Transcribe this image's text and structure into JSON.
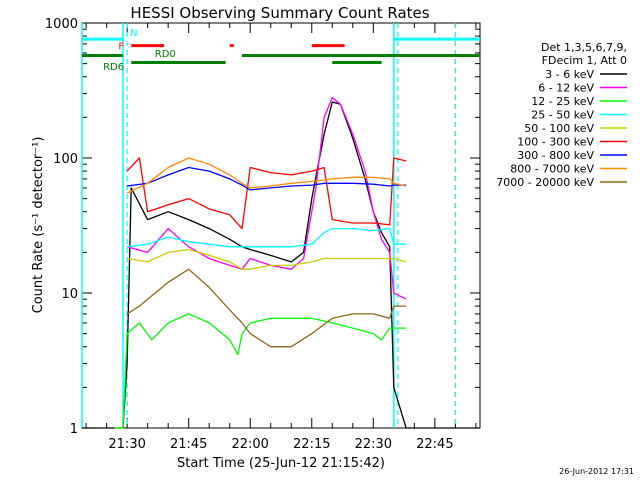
{
  "chart_data": {
    "type": "line",
    "title": "HESSI Observing Summary Count Rates",
    "xlabel": "Start Time (25-Jun-12 21:15:42)",
    "ylabel": "Count Rate (s⁻¹ detector⁻¹)",
    "yscale": "log",
    "ylim": [
      1,
      1000
    ],
    "xlim": [
      "21:19",
      "22:56"
    ],
    "x_ticks": [
      "21:30",
      "21:45",
      "22:00",
      "22:15",
      "22:30",
      "22:45"
    ],
    "y_ticks": [
      "1",
      "10",
      "100",
      "1000"
    ],
    "timestamp": "26-Jun-2012 17:31",
    "legend": {
      "placement": "right",
      "header": [
        "Det 1,3,5,6,7,9,",
        "FDecim 1, Att 0"
      ]
    },
    "series": [
      {
        "name": "3 - 6 keV",
        "color": "#000000",
        "x": [
          "21:19",
          "21:27",
          "21:29",
          "21:30",
          "21:31",
          "21:35",
          "21:40",
          "21:45",
          "21:50",
          "21:55",
          "21:58",
          "22:00",
          "22:05",
          "22:10",
          "22:13",
          "22:15",
          "22:18",
          "22:20",
          "22:22",
          "22:25",
          "22:28",
          "22:30",
          "22:32",
          "22:34",
          "22:35",
          "22:38",
          "22:40",
          "22:42",
          "22:44",
          "22:46",
          "22:48",
          "22:56"
        ],
        "y": [
          1,
          1,
          1,
          3,
          60,
          35,
          40,
          35,
          30,
          25,
          22,
          21,
          19,
          17,
          20,
          50,
          150,
          260,
          250,
          140,
          70,
          40,
          28,
          22,
          2,
          1,
          1,
          1,
          1,
          1,
          1,
          1
        ]
      },
      {
        "name": "6 - 12 keV",
        "color": "#ff00ff",
        "x": [
          "21:30",
          "21:35",
          "21:40",
          "21:45",
          "21:50",
          "21:55",
          "21:58",
          "22:00",
          "22:05",
          "22:10",
          "22:13",
          "22:16",
          "22:18",
          "22:20",
          "22:22",
          "22:25",
          "22:28",
          "22:30",
          "22:32",
          "22:34",
          "22:35",
          "22:38"
        ],
        "y": [
          22,
          20,
          30,
          22,
          18,
          16,
          15,
          18,
          16,
          15,
          18,
          60,
          200,
          280,
          250,
          150,
          80,
          40,
          25,
          20,
          10,
          9
        ]
      },
      {
        "name": "12 - 25 keV",
        "color": "#00ff00",
        "x": [
          "21:27",
          "21:29",
          "21:30",
          "21:33",
          "21:36",
          "21:40",
          "21:45",
          "21:50",
          "21:55",
          "21:57",
          "21:58",
          "22:00",
          "22:05",
          "22:10",
          "22:15",
          "22:20",
          "22:25",
          "22:30",
          "22:32",
          "22:34",
          "22:35",
          "22:38"
        ],
        "y": [
          1,
          1,
          5,
          6,
          4.5,
          6,
          7,
          6,
          4.5,
          3.5,
          5,
          6,
          6.5,
          6.5,
          6.5,
          6,
          5.5,
          5,
          4.5,
          5.5,
          5.5,
          5.5
        ]
      },
      {
        "name": "25 - 50 keV",
        "color": "#00ffff",
        "x": [
          "21:30",
          "21:35",
          "21:40",
          "21:45",
          "21:50",
          "21:55",
          "21:58",
          "22:00",
          "22:05",
          "22:10",
          "22:15",
          "22:18",
          "22:20",
          "22:25",
          "22:30",
          "22:34",
          "22:35",
          "22:38"
        ],
        "y": [
          22,
          23,
          26,
          24,
          23,
          22,
          22,
          22,
          22,
          22,
          23,
          28,
          30,
          30,
          29,
          30,
          23,
          23
        ]
      },
      {
        "name": "50 - 100 keV",
        "color": "#cccc00",
        "x": [
          "21:30",
          "21:35",
          "21:40",
          "21:45",
          "21:50",
          "21:55",
          "21:58",
          "22:00",
          "22:05",
          "22:10",
          "22:15",
          "22:18",
          "22:20",
          "22:25",
          "22:30",
          "22:34",
          "22:35",
          "22:38"
        ],
        "y": [
          18,
          17,
          20,
          21,
          19,
          17,
          15,
          15,
          16,
          16,
          17,
          18,
          18,
          18,
          18,
          18,
          18,
          17
        ]
      },
      {
        "name": "100 - 300 keV",
        "color": "#ff0000",
        "x": [
          "21:30",
          "21:33",
          "21:35",
          "21:40",
          "21:45",
          "21:50",
          "21:55",
          "21:58",
          "22:00",
          "22:05",
          "22:10",
          "22:15",
          "22:18",
          "22:20",
          "22:25",
          "22:30",
          "22:34",
          "22:35",
          "22:38"
        ],
        "y": [
          80,
          100,
          40,
          45,
          50,
          42,
          38,
          30,
          85,
          78,
          75,
          80,
          85,
          35,
          33,
          33,
          32,
          100,
          95
        ]
      },
      {
        "name": "300 - 800 keV",
        "color": "#0000ff",
        "x": [
          "21:30",
          "21:35",
          "21:40",
          "21:45",
          "21:50",
          "21:55",
          "21:58",
          "22:00",
          "22:05",
          "22:10",
          "22:15",
          "22:18",
          "22:20",
          "22:25",
          "22:30",
          "22:34",
          "22:35",
          "22:38"
        ],
        "y": [
          62,
          65,
          75,
          85,
          80,
          70,
          63,
          58,
          60,
          62,
          63,
          65,
          65,
          65,
          64,
          62,
          63,
          63
        ]
      },
      {
        "name": "800 - 7000 keV",
        "color": "#ff8c00",
        "x": [
          "21:30",
          "21:35",
          "21:40",
          "21:45",
          "21:50",
          "21:55",
          "21:58",
          "22:00",
          "22:05",
          "22:10",
          "22:15",
          "22:20",
          "22:25",
          "22:30",
          "22:34",
          "22:35",
          "22:38"
        ],
        "y": [
          55,
          65,
          85,
          100,
          90,
          75,
          65,
          60,
          62,
          65,
          67,
          70,
          72,
          72,
          70,
          65,
          62
        ]
      },
      {
        "name": "7000 - 20000 keV",
        "color": "#8b6914",
        "x": [
          "21:30",
          "21:33",
          "21:35",
          "21:40",
          "21:45",
          "21:50",
          "21:55",
          "21:58",
          "22:00",
          "22:05",
          "22:10",
          "22:15",
          "22:20",
          "22:25",
          "22:30",
          "22:34",
          "22:35",
          "22:38"
        ],
        "y": [
          7,
          8,
          9,
          12,
          15,
          11,
          7.5,
          6,
          5,
          4,
          4,
          5,
          6.5,
          7,
          7,
          6.5,
          8,
          8
        ]
      }
    ],
    "annotations": [
      {
        "label": "N",
        "color": "#00ffff"
      },
      {
        "label": "F",
        "color": "#ff0000"
      },
      {
        "label": "RD0",
        "color": "#007f00"
      },
      {
        "label": "RD6",
        "color": "#007f00"
      }
    ],
    "flag_bars": [
      {
        "name": "N",
        "color": "#00ffff",
        "y_data": 760,
        "intervals": [
          [
            "21:19",
            "21:29"
          ],
          [
            "22:35",
            "22:56"
          ]
        ]
      },
      {
        "name": "F",
        "color": "#ff0000",
        "y_data": 680,
        "intervals": [
          [
            "21:31",
            "21:39"
          ],
          [
            "21:55",
            "21:56"
          ],
          [
            "22:15",
            "22:23"
          ]
        ]
      },
      {
        "name": "RD0",
        "color": "#007f00",
        "y_data": 575,
        "intervals": [
          [
            "21:19",
            "21:29"
          ],
          [
            "21:58",
            "22:56"
          ]
        ]
      },
      {
        "name": "RD6",
        "color": "#007f00",
        "y_data": 510,
        "intervals": [
          [
            "21:31",
            "21:54"
          ],
          [
            "22:20",
            "22:32"
          ]
        ]
      }
    ],
    "vertical_markers": {
      "solid": {
        "color": "#00ffff",
        "times": [
          "21:19",
          "21:29",
          "22:35"
        ]
      },
      "dashed": {
        "color": "#00ffff",
        "times": [
          "21:30",
          "22:36",
          "22:50"
        ]
      }
    }
  }
}
